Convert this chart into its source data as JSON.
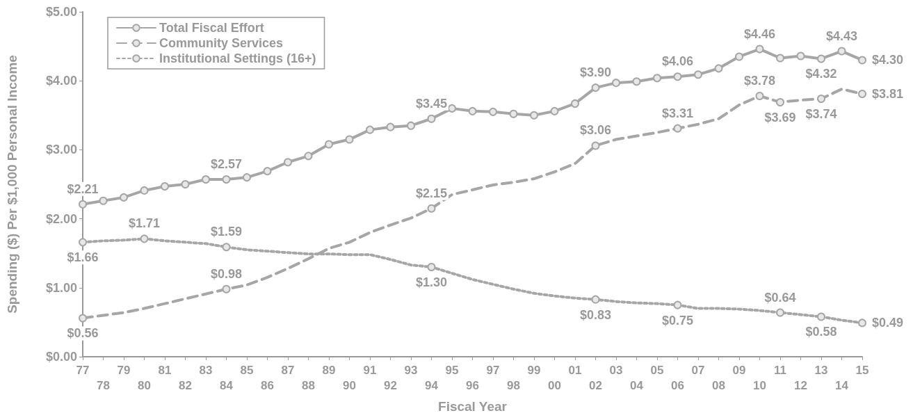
{
  "chart_data": {
    "type": "line",
    "xlabel": "Fiscal Year",
    "ylabel": "Spending ($) Per $1,000 Personal Income",
    "categories": [
      "77",
      "78",
      "79",
      "80",
      "81",
      "82",
      "83",
      "84",
      "85",
      "86",
      "87",
      "88",
      "89",
      "90",
      "91",
      "92",
      "93",
      "94",
      "95",
      "96",
      "97",
      "98",
      "99",
      "00",
      "01",
      "02",
      "03",
      "04",
      "05",
      "06",
      "07",
      "08",
      "09",
      "10",
      "11",
      "12",
      "13",
      "14",
      "15"
    ],
    "ylim": [
      0,
      5
    ],
    "yticks": [
      {
        "value": 0,
        "label": "$0.00"
      },
      {
        "value": 1,
        "label": "$1.00"
      },
      {
        "value": 2,
        "label": "$2.00"
      },
      {
        "value": 3,
        "label": "$3.00"
      },
      {
        "value": 4,
        "label": "$4.00"
      },
      {
        "value": 5,
        "label": "$5.00"
      }
    ],
    "grid": false,
    "legend": "top left",
    "series": [
      {
        "name": "Total Fiscal Effort",
        "color": "#a6a6a6",
        "line_style": "solid",
        "marker": "circle",
        "values": [
          2.21,
          2.26,
          2.31,
          2.41,
          2.47,
          2.5,
          2.57,
          2.57,
          2.6,
          2.69,
          2.82,
          2.91,
          3.08,
          3.15,
          3.29,
          3.33,
          3.35,
          3.45,
          3.6,
          3.56,
          3.55,
          3.52,
          3.5,
          3.56,
          3.67,
          3.9,
          3.97,
          3.99,
          4.04,
          4.06,
          4.09,
          4.18,
          4.35,
          4.46,
          4.33,
          4.36,
          4.32,
          4.43,
          4.3
        ],
        "value_labels": [
          "$2.21",
          null,
          null,
          null,
          null,
          null,
          null,
          "$2.57",
          null,
          null,
          null,
          null,
          null,
          null,
          null,
          null,
          null,
          "$3.45",
          null,
          null,
          null,
          null,
          null,
          null,
          null,
          "$3.90",
          null,
          null,
          null,
          "$4.06",
          null,
          null,
          null,
          "$4.46",
          null,
          null,
          "$4.32",
          "$4.43",
          "$4.30"
        ]
      },
      {
        "name": "Community Services",
        "color": "#a6a6a6",
        "line_style": "dashed",
        "values": [
          0.56,
          0.6,
          0.64,
          0.7,
          0.77,
          0.84,
          0.91,
          0.98,
          1.04,
          1.15,
          1.28,
          1.42,
          1.57,
          1.66,
          1.8,
          1.91,
          2.01,
          2.15,
          2.35,
          2.42,
          2.49,
          2.53,
          2.58,
          2.68,
          2.8,
          3.06,
          3.15,
          3.2,
          3.25,
          3.31,
          3.37,
          3.45,
          3.65,
          3.78,
          3.69,
          3.72,
          3.74,
          3.88,
          3.81
        ],
        "value_labels": [
          "$0.56",
          null,
          null,
          null,
          null,
          null,
          null,
          "$0.98",
          null,
          null,
          null,
          null,
          null,
          null,
          null,
          null,
          null,
          "$2.15",
          null,
          null,
          null,
          null,
          null,
          null,
          null,
          "$3.06",
          null,
          null,
          null,
          "$3.31",
          null,
          null,
          null,
          "$3.78",
          "$3.69",
          null,
          "$3.74",
          null,
          "$3.81"
        ]
      },
      {
        "name": "Institutional Settings (16+)",
        "color": "#a6a6a6",
        "line_style": "dotted",
        "values": [
          1.66,
          1.68,
          1.69,
          1.71,
          1.68,
          1.66,
          1.64,
          1.59,
          1.55,
          1.53,
          1.51,
          1.49,
          1.49,
          1.48,
          1.48,
          1.41,
          1.33,
          1.3,
          1.21,
          1.12,
          1.05,
          0.98,
          0.92,
          0.88,
          0.85,
          0.83,
          0.8,
          0.78,
          0.77,
          0.75,
          0.7,
          0.7,
          0.69,
          0.67,
          0.64,
          0.61,
          0.58,
          0.53,
          0.49
        ],
        "value_labels": [
          "$1.66",
          null,
          null,
          "$1.71",
          null,
          null,
          null,
          "$1.59",
          null,
          null,
          null,
          null,
          null,
          null,
          null,
          null,
          null,
          "$1.30",
          null,
          null,
          null,
          null,
          null,
          null,
          null,
          "$0.83",
          null,
          null,
          null,
          "$0.75",
          null,
          null,
          null,
          null,
          "$0.64",
          null,
          "$0.58",
          null,
          "$0.49"
        ]
      }
    ]
  }
}
